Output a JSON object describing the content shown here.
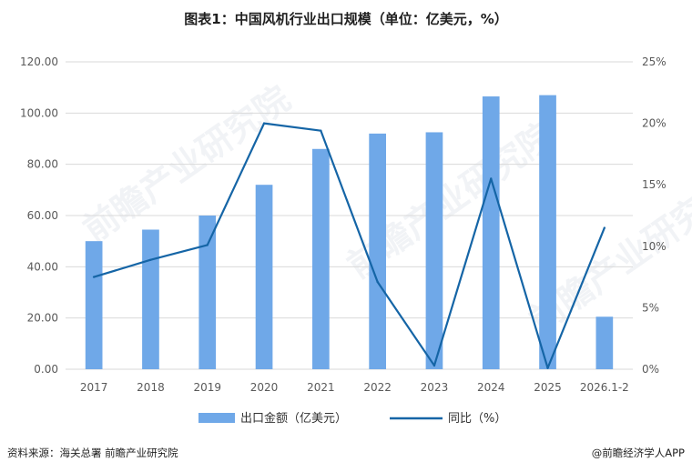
{
  "title": "图表1：中国风机行业出口规模（单位：亿美元，%）",
  "footer": {
    "source": "资料来源：海关总署  前瞻产业研究院",
    "brand": "@前瞻经济学人APP"
  },
  "watermark": "前瞻产业研究院",
  "chart_data": {
    "type": "bar",
    "categories": [
      "2017",
      "2018",
      "2019",
      "2020",
      "2021",
      "2022",
      "2023",
      "2024",
      "2025",
      "2026.1-2"
    ],
    "series": [
      {
        "name": "出口金额（亿美元）",
        "type": "bar",
        "axis": "left",
        "values": [
          50.0,
          54.5,
          60.0,
          72.0,
          86.0,
          92.0,
          92.5,
          106.5,
          107.0,
          20.5
        ]
      },
      {
        "name": "同比（%）",
        "type": "line",
        "axis": "right",
        "values": [
          7.5,
          8.9,
          10.1,
          20.0,
          19.4,
          7.1,
          0.3,
          15.5,
          0.1,
          11.5
        ]
      }
    ],
    "y_left": {
      "lim": [
        0,
        120
      ],
      "ticks": [
        "0.00",
        "20.00",
        "40.00",
        "60.00",
        "80.00",
        "100.00",
        "120.00"
      ]
    },
    "y_right": {
      "lim": [
        0,
        25
      ],
      "ticks": [
        "0%",
        "5%",
        "10%",
        "15%",
        "20%",
        "25%"
      ]
    },
    "grid": true,
    "legend": "bottom",
    "colors": {
      "bar": "#6fa8e8",
      "line": "#1565a6",
      "grid": "#d9d9d9",
      "text": "#595959"
    }
  }
}
